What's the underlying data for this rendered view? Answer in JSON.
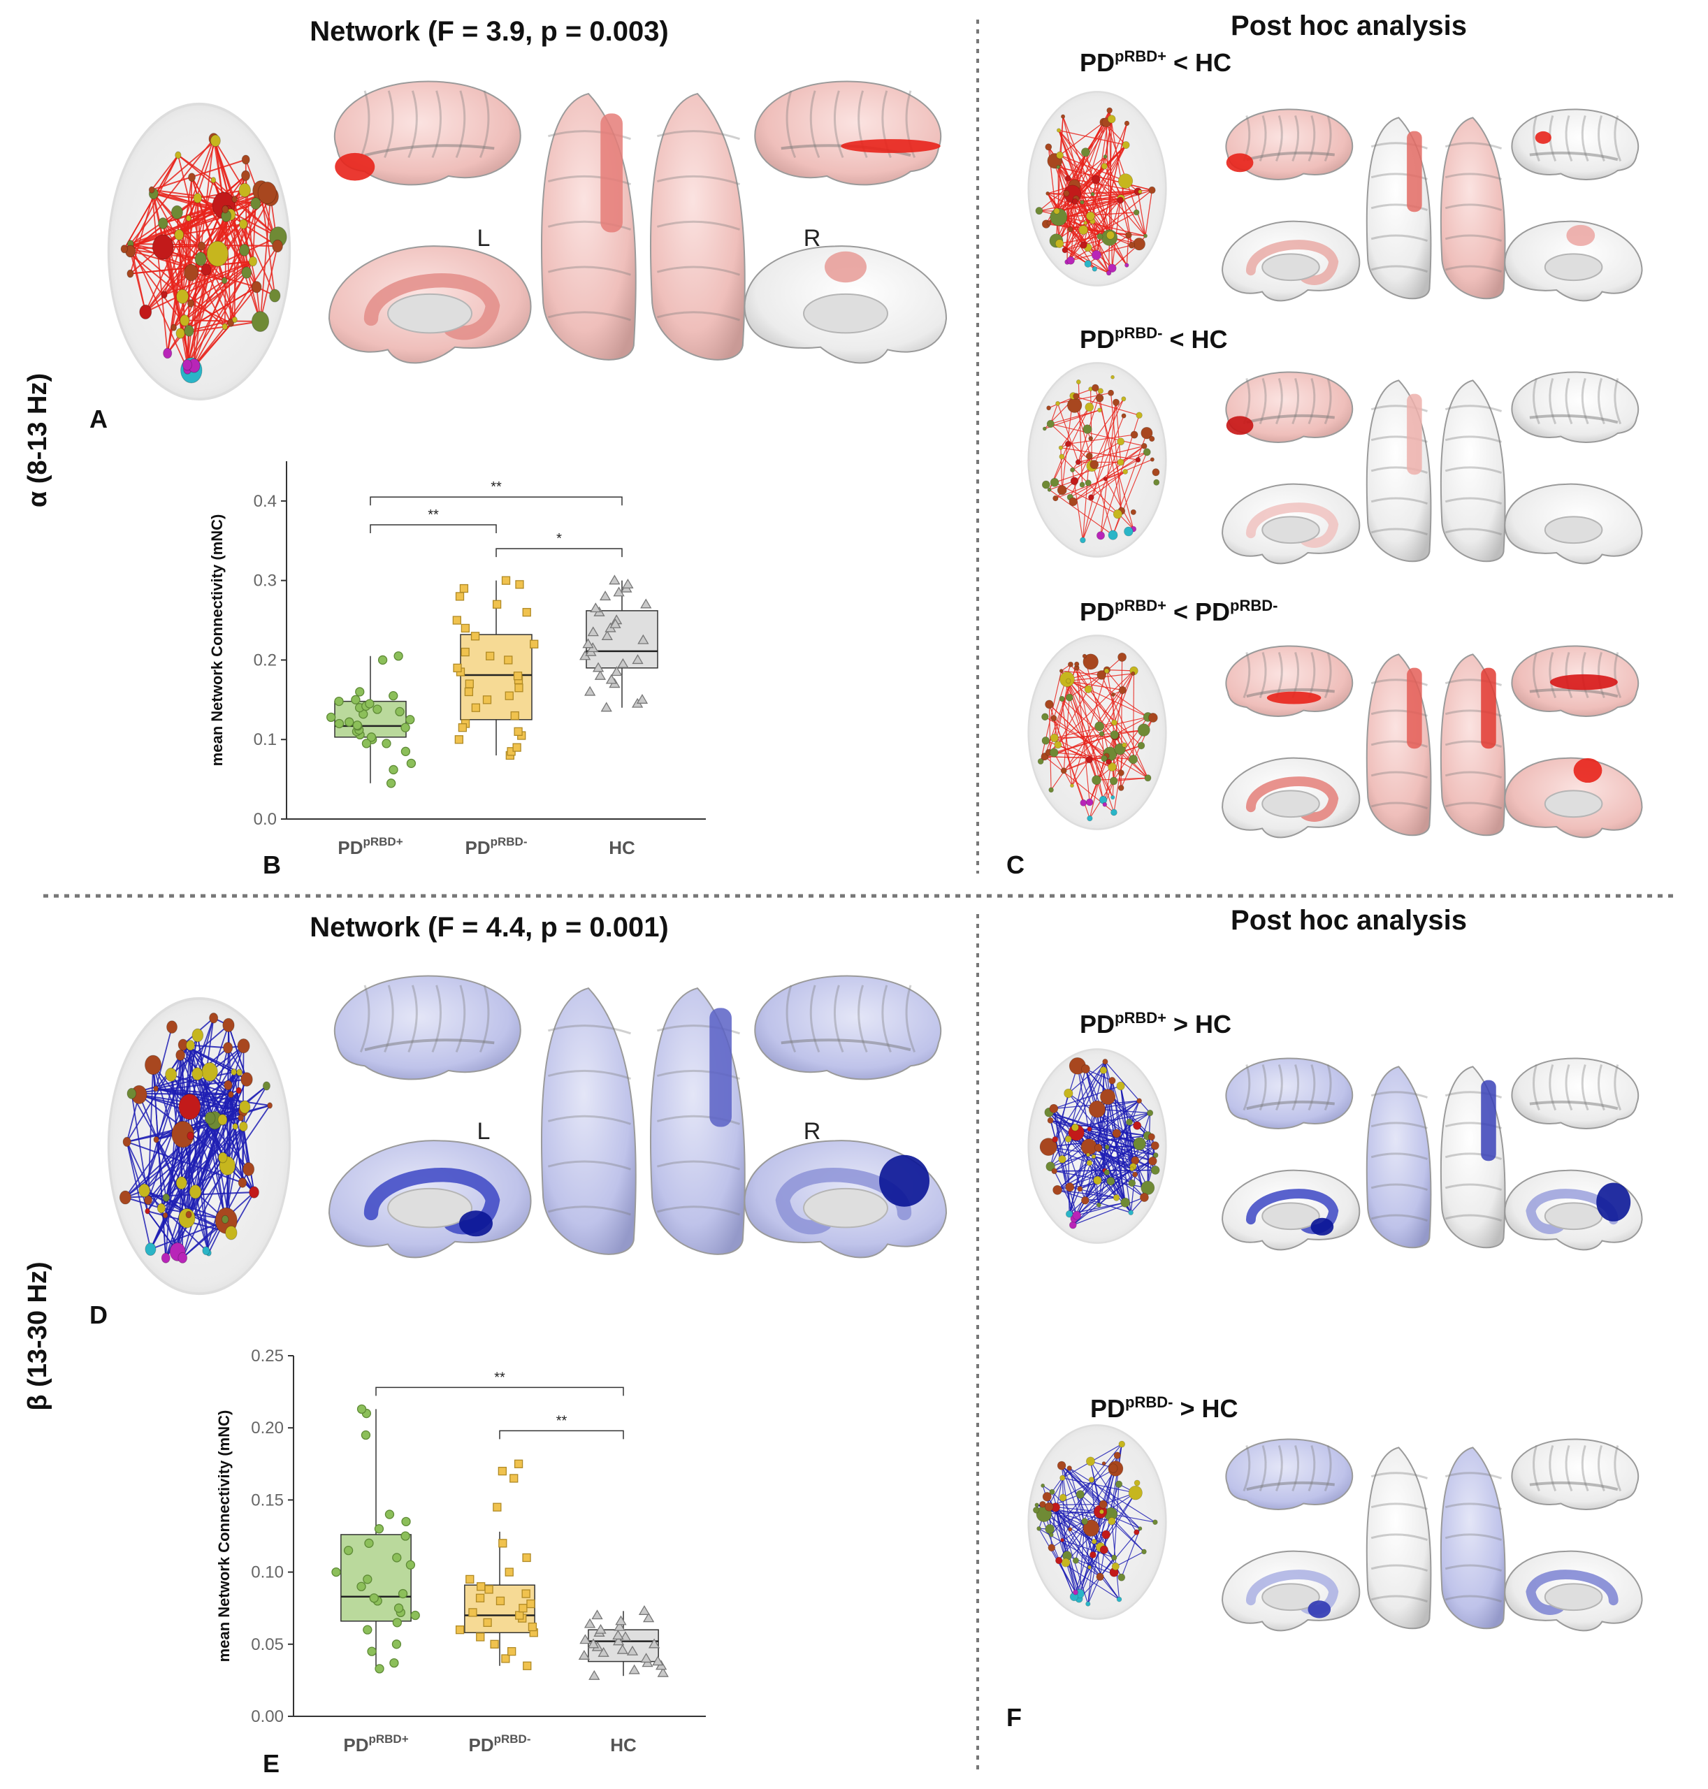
{
  "alpha": {
    "band_label": "α (8-13 Hz)",
    "network_title": "Network (F = 3.9, p = 0.003)",
    "posthoc_title": "Post hoc analysis",
    "hemi_left": "L",
    "hemi_right": "R",
    "panel_A": "A",
    "panel_B": "B",
    "panel_C": "C",
    "comparisons": [
      {
        "base": "PD",
        "sup": "pRBD+",
        "rest": " < HC"
      },
      {
        "base": "PD",
        "sup": "pRBD-",
        "rest": " < HC"
      },
      {
        "base": "PD",
        "sup": "pRBD+",
        "rest": " < ",
        "base2": "PD",
        "sup2": "pRBD-"
      }
    ]
  },
  "beta": {
    "band_label": "β (13-30 Hz)",
    "network_title": "Network (F = 4.4, p = 0.001)",
    "posthoc_title": "Post hoc analysis",
    "hemi_left": "L",
    "hemi_right": "R",
    "panel_D": "D",
    "panel_E": "E",
    "panel_F": "F",
    "comparisons": [
      {
        "base": "PD",
        "sup": "pRBD+",
        "rest": " > HC"
      },
      {
        "base": "PD",
        "sup": "pRBD-",
        "rest": " > HC"
      }
    ]
  },
  "colors": {
    "alpha_edge": "#e8231b",
    "beta_edge": "#1e1eb4",
    "green": "#8cbf5a",
    "yellow": "#f0c24e",
    "grey": "#c9c9c9"
  },
  "chart_data": [
    {
      "type": "box",
      "ylabel": "mean Network Connectivity (mNC)",
      "ylim": [
        0,
        0.45
      ],
      "yticks": [
        "0.0",
        "0.1",
        "0.2",
        "0.3",
        "0.4"
      ],
      "ytick_values": [
        0,
        0.1,
        0.2,
        0.3,
        0.4
      ],
      "categories": [
        {
          "base": "PD",
          "sup": "pRBD+"
        },
        {
          "base": "PD",
          "sup": "pRBD-"
        },
        {
          "base": "HC",
          "sup": ""
        }
      ],
      "boxes": [
        {
          "q1": 0.103,
          "median": 0.117,
          "q3": 0.148,
          "whisker_low": 0.045,
          "whisker_high": 0.205
        },
        {
          "q1": 0.125,
          "median": 0.181,
          "q3": 0.232,
          "whisker_low": 0.08,
          "whisker_high": 0.3
        },
        {
          "q1": 0.19,
          "median": 0.211,
          "q3": 0.262,
          "whisker_low": 0.14,
          "whisker_high": 0.3
        }
      ],
      "points": [
        [
          0.045,
          0.062,
          0.07,
          0.085,
          0.095,
          0.1,
          0.103,
          0.106,
          0.11,
          0.112,
          0.115,
          0.117,
          0.118,
          0.12,
          0.122,
          0.125,
          0.128,
          0.132,
          0.135,
          0.138,
          0.14,
          0.142,
          0.145,
          0.148,
          0.15,
          0.155,
          0.16,
          0.2,
          0.205,
          0.095
        ],
        [
          0.08,
          0.085,
          0.09,
          0.1,
          0.105,
          0.11,
          0.12,
          0.13,
          0.14,
          0.15,
          0.155,
          0.16,
          0.17,
          0.175,
          0.18,
          0.185,
          0.19,
          0.2,
          0.21,
          0.22,
          0.23,
          0.24,
          0.25,
          0.26,
          0.27,
          0.28,
          0.29,
          0.295,
          0.3,
          0.115,
          0.165,
          0.205
        ],
        [
          0.14,
          0.145,
          0.15,
          0.16,
          0.17,
          0.18,
          0.185,
          0.19,
          0.195,
          0.2,
          0.205,
          0.21,
          0.215,
          0.22,
          0.225,
          0.23,
          0.235,
          0.24,
          0.25,
          0.26,
          0.265,
          0.27,
          0.28,
          0.285,
          0.29,
          0.295,
          0.3,
          0.175,
          0.245
        ]
      ],
      "significance": [
        {
          "from": 0,
          "to": 2,
          "label": "**",
          "y": 0.405
        },
        {
          "from": 0,
          "to": 1,
          "label": "**",
          "y": 0.37
        },
        {
          "from": 1,
          "to": 2,
          "label": "*",
          "y": 0.34
        }
      ]
    },
    {
      "type": "box",
      "ylabel": "mean Network Connectivity (mNC)",
      "ylim": [
        0,
        0.25
      ],
      "yticks": [
        "0.00",
        "0.05",
        "0.10",
        "0.15",
        "0.20",
        "0.25"
      ],
      "ytick_values": [
        0,
        0.05,
        0.1,
        0.15,
        0.2,
        0.25
      ],
      "categories": [
        {
          "base": "PD",
          "sup": "pRBD+"
        },
        {
          "base": "PD",
          "sup": "pRBD-"
        },
        {
          "base": "HC",
          "sup": ""
        }
      ],
      "boxes": [
        {
          "q1": 0.066,
          "median": 0.083,
          "q3": 0.126,
          "whisker_low": 0.033,
          "whisker_high": 0.213
        },
        {
          "q1": 0.058,
          "median": 0.07,
          "q3": 0.091,
          "whisker_low": 0.035,
          "whisker_high": 0.128
        },
        {
          "q1": 0.038,
          "median": 0.052,
          "q3": 0.06,
          "whisker_low": 0.028,
          "whisker_high": 0.073
        }
      ],
      "points": [
        [
          0.033,
          0.037,
          0.045,
          0.05,
          0.06,
          0.065,
          0.07,
          0.072,
          0.075,
          0.08,
          0.082,
          0.085,
          0.09,
          0.095,
          0.1,
          0.105,
          0.11,
          0.115,
          0.12,
          0.125,
          0.13,
          0.135,
          0.14,
          0.21,
          0.213,
          0.195
        ],
        [
          0.035,
          0.04,
          0.045,
          0.05,
          0.055,
          0.058,
          0.06,
          0.062,
          0.065,
          0.068,
          0.07,
          0.072,
          0.075,
          0.078,
          0.08,
          0.082,
          0.085,
          0.088,
          0.09,
          0.095,
          0.1,
          0.11,
          0.12,
          0.145,
          0.165,
          0.17,
          0.175
        ],
        [
          0.028,
          0.03,
          0.032,
          0.035,
          0.037,
          0.04,
          0.042,
          0.044,
          0.046,
          0.048,
          0.05,
          0.052,
          0.053,
          0.055,
          0.056,
          0.058,
          0.06,
          0.062,
          0.064,
          0.066,
          0.068,
          0.07,
          0.073,
          0.045,
          0.05,
          0.038
        ]
      ],
      "significance": [
        {
          "from": 0,
          "to": 2,
          "label": "**",
          "y": 0.228
        },
        {
          "from": 1,
          "to": 2,
          "label": "**",
          "y": 0.198
        }
      ]
    }
  ]
}
